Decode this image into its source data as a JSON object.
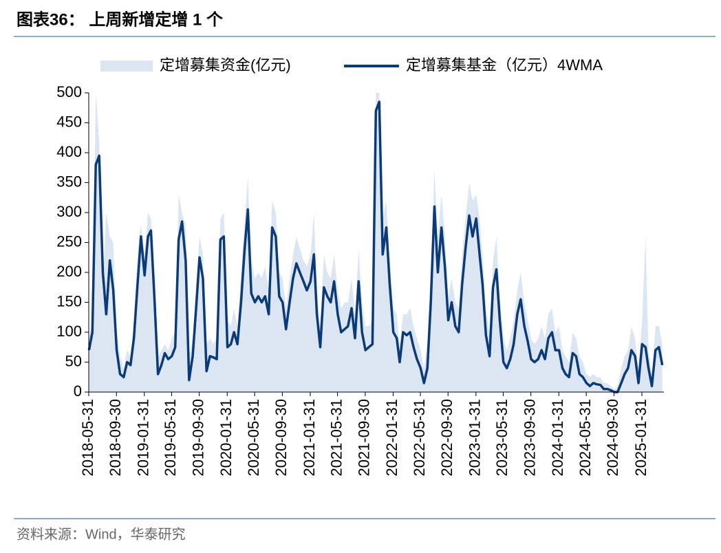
{
  "chart_data": {
    "type": "line",
    "title": "图表36： 上周新增定增 1 个",
    "source": "资料来源：Wind，华泰研究",
    "x": [
      "2018-06-01",
      "2018-06-16",
      "2018-07-01",
      "2018-07-16",
      "2018-08-01",
      "2018-08-16",
      "2018-09-01",
      "2018-09-16",
      "2018-10-01",
      "2018-10-16",
      "2018-11-01",
      "2018-11-16",
      "2018-12-01",
      "2018-12-16",
      "2019-01-01",
      "2019-01-16",
      "2019-02-01",
      "2019-02-16",
      "2019-03-01",
      "2019-03-16",
      "2019-04-01",
      "2019-04-16",
      "2019-05-01",
      "2019-05-16",
      "2019-06-01",
      "2019-06-16",
      "2019-07-01",
      "2019-07-16",
      "2019-08-01",
      "2019-08-16",
      "2019-09-01",
      "2019-09-16",
      "2019-10-01",
      "2019-10-16",
      "2019-11-01",
      "2019-11-16",
      "2019-12-01",
      "2019-12-16",
      "2020-01-01",
      "2020-01-16",
      "2020-02-01",
      "2020-02-16",
      "2020-03-01",
      "2020-03-16",
      "2020-04-01",
      "2020-04-16",
      "2020-05-01",
      "2020-05-16",
      "2020-06-01",
      "2020-06-16",
      "2020-07-01",
      "2020-07-16",
      "2020-08-01",
      "2020-08-16",
      "2020-09-01",
      "2020-09-16",
      "2020-10-01",
      "2020-10-16",
      "2020-11-01",
      "2020-11-16",
      "2020-12-01",
      "2020-12-16",
      "2021-01-01",
      "2021-01-16",
      "2021-02-01",
      "2021-02-16",
      "2021-03-01",
      "2021-03-16",
      "2021-04-01",
      "2021-04-16",
      "2021-05-01",
      "2021-05-16",
      "2021-06-01",
      "2021-06-16",
      "2021-07-01",
      "2021-07-16",
      "2021-08-01",
      "2021-08-16",
      "2021-09-01",
      "2021-09-16",
      "2021-10-01",
      "2021-10-16",
      "2021-11-01",
      "2021-11-16",
      "2021-12-01",
      "2021-12-16",
      "2022-01-01",
      "2022-01-16",
      "2022-02-01",
      "2022-02-16",
      "2022-03-01",
      "2022-03-16",
      "2022-04-01",
      "2022-04-16",
      "2022-05-01",
      "2022-05-16",
      "2022-06-01",
      "2022-06-16",
      "2022-07-01",
      "2022-07-16",
      "2022-08-01",
      "2022-08-16",
      "2022-09-01",
      "2022-09-16",
      "2022-10-01",
      "2022-10-16",
      "2022-11-01",
      "2022-11-16",
      "2022-12-01",
      "2022-12-16",
      "2023-01-01",
      "2023-01-16",
      "2023-02-01",
      "2023-02-16",
      "2023-03-01",
      "2023-03-16",
      "2023-04-01",
      "2023-04-16",
      "2023-05-01",
      "2023-05-16",
      "2023-06-01",
      "2023-06-16",
      "2023-07-01",
      "2023-07-16",
      "2023-08-01",
      "2023-08-16",
      "2023-09-01",
      "2023-09-16",
      "2023-10-01",
      "2023-10-16",
      "2023-11-01",
      "2023-11-16",
      "2023-12-01",
      "2023-12-16",
      "2024-01-01",
      "2024-01-16",
      "2024-02-01",
      "2024-02-16",
      "2024-03-01",
      "2024-03-16",
      "2024-04-01",
      "2024-04-16",
      "2024-05-01",
      "2024-05-16",
      "2024-06-01",
      "2024-06-16",
      "2024-07-01",
      "2024-07-16",
      "2024-08-01",
      "2024-08-16",
      "2024-09-01",
      "2024-09-16",
      "2024-10-01",
      "2024-10-16",
      "2024-11-01",
      "2024-11-16",
      "2024-12-01",
      "2024-12-16",
      "2025-01-01",
      "2025-01-16",
      "2025-02-01",
      "2025-02-16",
      "2025-03-01",
      "2025-03-16",
      "2025-04-01",
      "2025-04-16",
      "2025-05-01"
    ],
    "series": [
      {
        "name": "定增募集资金(亿元)",
        "type": "area",
        "color": "#dce6f2",
        "values": [
          90,
          120,
          500,
          420,
          180,
          300,
          260,
          250,
          100,
          60,
          40,
          70,
          60,
          120,
          230,
          280,
          230,
          300,
          290,
          200,
          60,
          70,
          80,
          70,
          90,
          100,
          330,
          300,
          280,
          60,
          90,
          180,
          260,
          230,
          80,
          90,
          80,
          90,
          290,
          300,
          120,
          110,
          140,
          110,
          200,
          280,
          360,
          220,
          190,
          200,
          190,
          210,
          170,
          320,
          300,
          200,
          190,
          140,
          190,
          230,
          260,
          240,
          220,
          210,
          230,
          300,
          170,
          110,
          230,
          200,
          190,
          230,
          170,
          140,
          150,
          150,
          190,
          130,
          240,
          150,
          110,
          110,
          120,
          500,
          500,
          290,
          320,
          220,
          140,
          130,
          80,
          130,
          130,
          140,
          110,
          90,
          70,
          40,
          80,
          200,
          370,
          260,
          330,
          260,
          160,
          190,
          150,
          140,
          230,
          290,
          350,
          320,
          330,
          290,
          230,
          140,
          100,
          220,
          260,
          160,
          90,
          70,
          90,
          120,
          170,
          200,
          150,
          120,
          90,
          80,
          90,
          110,
          90,
          130,
          140,
          100,
          110,
          70,
          60,
          50,
          100,
          90,
          60,
          50,
          30,
          25,
          30,
          25,
          25,
          15,
          15,
          10,
          5,
          10,
          40,
          60,
          70,
          110,
          90,
          40,
          120,
          260,
          70,
          30,
          110,
          110,
          80
        ]
      },
      {
        "name": "定增募集基金（亿元）4WMA",
        "type": "line",
        "color": "#0a3a78",
        "values": [
          70,
          100,
          380,
          395,
          200,
          130,
          220,
          170,
          70,
          30,
          25,
          50,
          45,
          90,
          180,
          260,
          195,
          260,
          270,
          160,
          30,
          45,
          65,
          55,
          60,
          75,
          255,
          285,
          220,
          20,
          60,
          140,
          225,
          190,
          35,
          60,
          58,
          55,
          255,
          260,
          75,
          80,
          100,
          80,
          150,
          235,
          305,
          165,
          150,
          160,
          150,
          160,
          130,
          275,
          260,
          160,
          150,
          105,
          150,
          190,
          215,
          200,
          185,
          170,
          185,
          230,
          130,
          75,
          175,
          160,
          150,
          185,
          130,
          100,
          105,
          110,
          140,
          90,
          185,
          100,
          70,
          75,
          80,
          470,
          485,
          230,
          275,
          180,
          100,
          90,
          50,
          100,
          95,
          100,
          75,
          55,
          40,
          15,
          40,
          150,
          310,
          200,
          275,
          210,
          120,
          150,
          110,
          100,
          180,
          240,
          295,
          260,
          290,
          230,
          180,
          95,
          60,
          175,
          205,
          120,
          50,
          40,
          55,
          80,
          130,
          155,
          110,
          85,
          55,
          50,
          55,
          70,
          55,
          90,
          100,
          70,
          70,
          40,
          30,
          25,
          65,
          60,
          30,
          25,
          15,
          10,
          15,
          13,
          12,
          5,
          5,
          3,
          0,
          0,
          15,
          30,
          40,
          70,
          60,
          15,
          80,
          75,
          40,
          10,
          70,
          75,
          45
        ]
      }
    ],
    "xlim": [
      "2018-05-31",
      "2025-05-08"
    ],
    "xticks": [
      "2018-05-31",
      "2018-09-30",
      "2019-01-31",
      "2019-05-31",
      "2019-09-30",
      "2020-01-31",
      "2020-05-31",
      "2020-09-30",
      "2021-01-31",
      "2021-05-31",
      "2021-09-30",
      "2022-01-31",
      "2022-05-31",
      "2022-09-30",
      "2023-01-31",
      "2023-05-31",
      "2023-09-30",
      "2024-01-31",
      "2024-05-31",
      "2024-09-30",
      "2025-01-31"
    ],
    "ylim": [
      0,
      500
    ],
    "yticks": [
      0,
      50,
      100,
      150,
      200,
      250,
      300,
      350,
      400,
      450,
      500
    ],
    "legend": "top"
  }
}
